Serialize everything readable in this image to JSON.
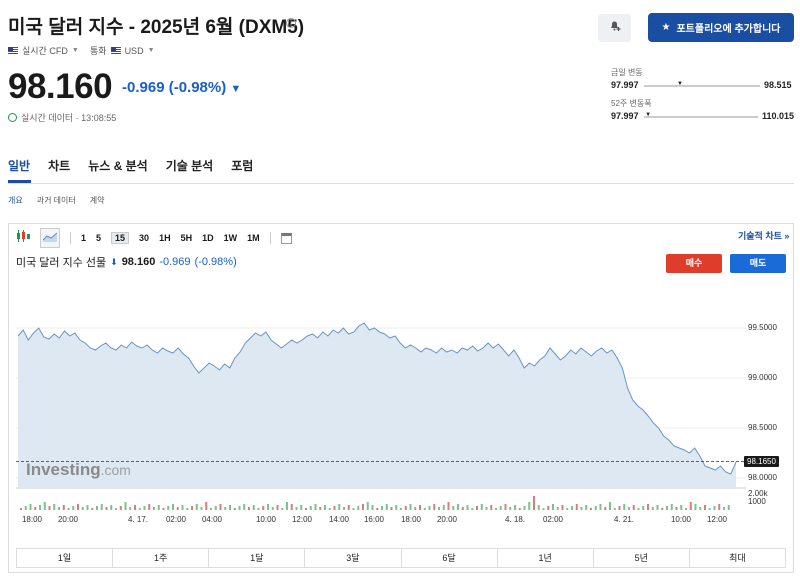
{
  "header": {
    "title": "미국 달러 지수 - 2025년 6월 (DXM5)",
    "info_icon": "info-icon",
    "meta_realtime": "실시간 CFD",
    "meta_currency_label": "통화",
    "meta_currency": "USD",
    "bell_icon": "bell-plus-icon",
    "portfolio_button": "포트폴리오에 추가합니다",
    "star_icon": "star-icon"
  },
  "quote": {
    "price": "98.160",
    "change": "-0.969",
    "change_pct": "(-0.98%)",
    "direction_icon": "down-triangle-icon",
    "realtime_label": "실시간 데이터 · 13:08:55",
    "change_color": "#1a5ecc"
  },
  "ranges": {
    "day_label": "금일 변동",
    "day_low": "97.997",
    "day_high": "98.515",
    "week52_label": "52주 변동폭",
    "week52_low": "97.997",
    "week52_high": "110.015",
    "day_marker": 0.31,
    "week52_marker": 0.01
  },
  "tabs": [
    "일반",
    "차트",
    "뉴스 & 분석",
    "기술 분석",
    "포럼"
  ],
  "subtabs": [
    "개요",
    "과거 데이터",
    "계약"
  ],
  "toolbar": {
    "timeframes": [
      "1",
      "5",
      "15",
      "30",
      "1H",
      "5H",
      "1D",
      "1W",
      "1M"
    ],
    "selected": "15",
    "tech_chart_link": "기술적 차트 »"
  },
  "chart_header": {
    "symbol": "미국 달러 지수 선물",
    "price": "98.160",
    "change": "-0.969",
    "change_pct": "(-0.98%)",
    "buy": "매수",
    "sell": "매도"
  },
  "chart_data": {
    "type": "area",
    "ylabels": [
      "99.5000",
      "99.0000",
      "98.5000",
      "98.0000"
    ],
    "yticks": [
      99.5,
      99.0,
      98.5,
      98.0
    ],
    "ylim": [
      97.9,
      100.0
    ],
    "current_value": "98.1650",
    "current": 98.165,
    "xlabels": [
      "18:00",
      "20:00",
      "4. 17.",
      "02:00",
      "04:00",
      "10:00",
      "12:00",
      "14:00",
      "16:00",
      "18:00",
      "20:00",
      "4. 18.",
      "02:00",
      "4. 21.",
      "10:00",
      "12:00"
    ],
    "volume_labels": [
      "2.00k",
      "1000"
    ],
    "values": [
      99.42,
      99.48,
      99.38,
      99.45,
      99.5,
      99.41,
      99.39,
      99.44,
      99.4,
      99.47,
      99.42,
      99.45,
      99.38,
      99.35,
      99.3,
      99.28,
      99.32,
      99.35,
      99.3,
      99.28,
      99.33,
      99.3,
      99.36,
      99.32,
      99.3,
      99.33,
      99.28,
      99.25,
      99.3,
      99.27,
      99.25,
      99.3,
      99.24,
      99.2,
      99.12,
      99.05,
      99.1,
      99.15,
      99.12,
      99.08,
      99.14,
      99.1,
      99.2,
      99.26,
      99.35,
      99.4,
      99.45,
      99.42,
      99.46,
      99.38,
      99.34,
      99.3,
      99.34,
      99.38,
      99.35,
      99.38,
      99.42,
      99.44,
      99.4,
      99.46,
      99.42,
      99.48,
      99.45,
      99.5,
      99.44,
      99.46,
      99.52,
      99.55,
      99.48,
      99.5,
      99.46,
      99.44,
      99.4,
      99.42,
      99.35,
      99.3,
      99.33,
      99.3,
      99.26,
      99.3,
      99.28,
      99.25,
      99.3,
      99.26,
      99.28,
      99.25,
      99.3,
      99.28,
      99.32,
      99.27,
      99.3,
      99.35,
      99.3,
      99.34,
      99.28,
      99.22,
      99.28,
      99.2,
      99.1,
      99.15,
      99.12,
      99.18,
      99.22,
      99.3,
      99.24,
      99.18,
      99.22,
      99.28,
      99.24,
      99.3,
      99.26,
      99.22,
      99.27,
      99.3,
      99.25,
      99.28,
      99.2,
      99.1,
      98.9,
      98.78,
      98.72,
      98.68,
      98.62,
      98.55,
      98.5,
      98.42,
      98.38,
      98.32,
      98.3,
      98.28,
      98.25,
      98.3,
      98.22,
      98.12,
      98.1,
      98.08,
      98.12,
      98.06,
      98.04,
      98.16
    ]
  },
  "range_buttons": [
    "1일",
    "1주",
    "1달",
    "3달",
    "6달",
    "1년",
    "5년",
    "최대"
  ],
  "watermark": {
    "brand": "Investing",
    "suffix": ".com"
  }
}
